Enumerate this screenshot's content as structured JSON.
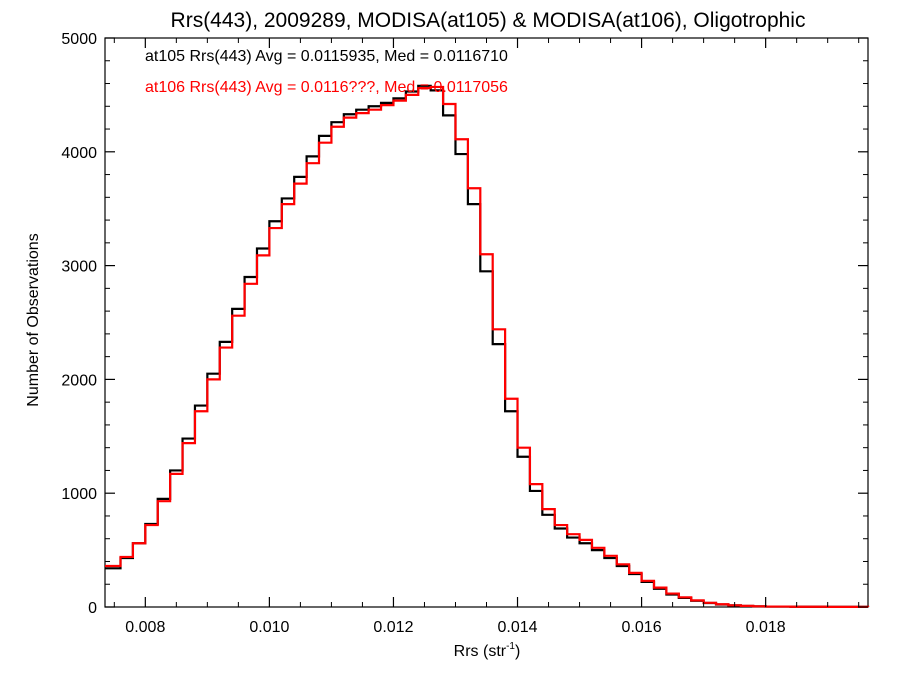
{
  "chart_data": {
    "type": "line",
    "title": "Rrs(443), 2009289, MODISA(at105) & MODISA(at106), Oligotrophic",
    "xlabel_main": "Rrs (str",
    "xlabel_sup": "-1",
    "xlabel_close": ")",
    "ylabel": "Number of Observations",
    "xlim": [
      0.00735,
      0.01965
    ],
    "ylim": [
      0,
      5000
    ],
    "x_ticks": [
      0.008,
      0.01,
      0.012,
      0.014,
      0.016,
      0.018
    ],
    "x_tick_labels": [
      "0.008",
      "0.010",
      "0.012",
      "0.014",
      "0.016",
      "0.018"
    ],
    "y_ticks": [
      0,
      1000,
      2000,
      3000,
      4000,
      5000
    ],
    "y_tick_labels": [
      "0",
      "1000",
      "2000",
      "3000",
      "4000",
      "5000"
    ],
    "grid": false,
    "legend": "none",
    "annotations": [
      {
        "text": "at105 Rrs(443) Avg = 0.0115935, Med = 0.0116710",
        "color": "#000000"
      },
      {
        "text": "at106 Rrs(443) Avg = 0.0116???, Med = 0.0117056",
        "color": "#ff0000"
      }
    ],
    "series": [
      {
        "color": "#000000",
        "points": [
          [
            0.00735,
            340
          ],
          [
            0.0076,
            430
          ],
          [
            0.0078,
            560
          ],
          [
            0.008,
            730
          ],
          [
            0.0082,
            950
          ],
          [
            0.0084,
            1200
          ],
          [
            0.0086,
            1480
          ],
          [
            0.0088,
            1770
          ],
          [
            0.009,
            2050
          ],
          [
            0.0092,
            2330
          ],
          [
            0.0094,
            2620
          ],
          [
            0.0096,
            2900
          ],
          [
            0.0098,
            3150
          ],
          [
            0.01,
            3390
          ],
          [
            0.0102,
            3590
          ],
          [
            0.0104,
            3780
          ],
          [
            0.0106,
            3960
          ],
          [
            0.0108,
            4140
          ],
          [
            0.011,
            4260
          ],
          [
            0.0112,
            4330
          ],
          [
            0.0114,
            4370
          ],
          [
            0.0116,
            4400
          ],
          [
            0.0118,
            4430
          ],
          [
            0.012,
            4470
          ],
          [
            0.0122,
            4530
          ],
          [
            0.0124,
            4580
          ],
          [
            0.0126,
            4540
          ],
          [
            0.0128,
            4320
          ],
          [
            0.013,
            3980
          ],
          [
            0.0132,
            3540
          ],
          [
            0.0134,
            2950
          ],
          [
            0.0136,
            2310
          ],
          [
            0.0138,
            1720
          ],
          [
            0.014,
            1320
          ],
          [
            0.0142,
            1020
          ],
          [
            0.0144,
            810
          ],
          [
            0.0146,
            690
          ],
          [
            0.0148,
            610
          ],
          [
            0.015,
            560
          ],
          [
            0.0152,
            500
          ],
          [
            0.0154,
            430
          ],
          [
            0.0156,
            360
          ],
          [
            0.0158,
            290
          ],
          [
            0.016,
            220
          ],
          [
            0.0162,
            160
          ],
          [
            0.0164,
            110
          ],
          [
            0.0166,
            80
          ],
          [
            0.0168,
            55
          ],
          [
            0.017,
            35
          ],
          [
            0.0172,
            22
          ],
          [
            0.0174,
            14
          ],
          [
            0.0176,
            9
          ],
          [
            0.0178,
            6
          ],
          [
            0.018,
            4
          ],
          [
            0.0184,
            2
          ],
          [
            0.019,
            1
          ],
          [
            0.01965,
            0
          ]
        ]
      },
      {
        "color": "#ff0000",
        "points": [
          [
            0.00735,
            360
          ],
          [
            0.0076,
            440
          ],
          [
            0.0078,
            560
          ],
          [
            0.008,
            720
          ],
          [
            0.0082,
            930
          ],
          [
            0.0084,
            1170
          ],
          [
            0.0086,
            1440
          ],
          [
            0.0088,
            1720
          ],
          [
            0.009,
            2000
          ],
          [
            0.0092,
            2280
          ],
          [
            0.0094,
            2560
          ],
          [
            0.0096,
            2840
          ],
          [
            0.0098,
            3090
          ],
          [
            0.01,
            3330
          ],
          [
            0.0102,
            3540
          ],
          [
            0.0104,
            3720
          ],
          [
            0.0106,
            3900
          ],
          [
            0.0108,
            4080
          ],
          [
            0.011,
            4220
          ],
          [
            0.0112,
            4300
          ],
          [
            0.0114,
            4340
          ],
          [
            0.0116,
            4370
          ],
          [
            0.0118,
            4410
          ],
          [
            0.012,
            4450
          ],
          [
            0.0122,
            4500
          ],
          [
            0.0124,
            4560
          ],
          [
            0.0126,
            4570
          ],
          [
            0.0128,
            4420
          ],
          [
            0.013,
            4110
          ],
          [
            0.0132,
            3680
          ],
          [
            0.0134,
            3100
          ],
          [
            0.0136,
            2440
          ],
          [
            0.0138,
            1830
          ],
          [
            0.014,
            1400
          ],
          [
            0.0142,
            1080
          ],
          [
            0.0144,
            860
          ],
          [
            0.0146,
            720
          ],
          [
            0.0148,
            640
          ],
          [
            0.015,
            590
          ],
          [
            0.0152,
            520
          ],
          [
            0.0154,
            450
          ],
          [
            0.0156,
            375
          ],
          [
            0.0158,
            300
          ],
          [
            0.016,
            230
          ],
          [
            0.0162,
            170
          ],
          [
            0.0164,
            118
          ],
          [
            0.0166,
            85
          ],
          [
            0.0168,
            58
          ],
          [
            0.017,
            37
          ],
          [
            0.0172,
            24
          ],
          [
            0.0174,
            15
          ],
          [
            0.0176,
            10
          ],
          [
            0.0178,
            6
          ],
          [
            0.018,
            4
          ],
          [
            0.0184,
            2
          ],
          [
            0.019,
            1
          ],
          [
            0.01965,
            0
          ]
        ]
      }
    ]
  }
}
